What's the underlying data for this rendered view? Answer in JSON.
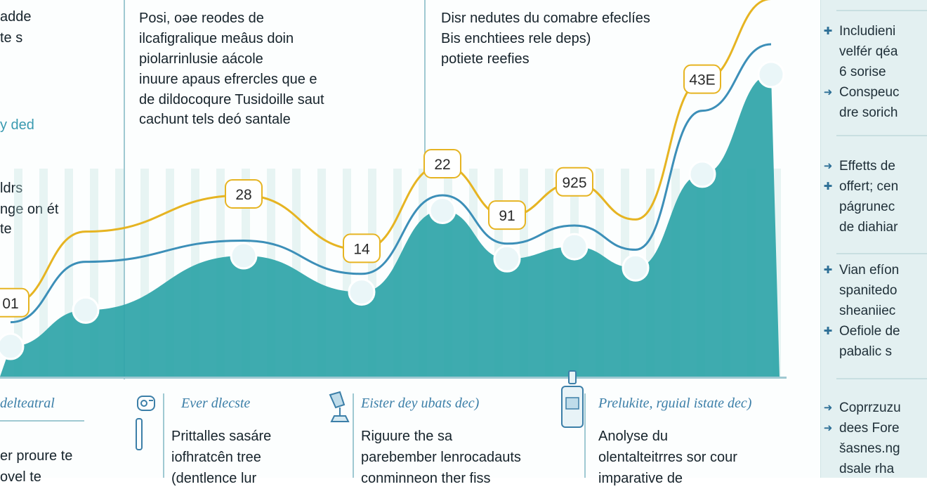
{
  "chart_data": {
    "type": "area",
    "title": "",
    "xlabel": "",
    "ylabel": "",
    "ylim": [
      0,
      100
    ],
    "grid": false,
    "legend": "none",
    "series": [
      {
        "values": [
          10,
          22,
          40,
          28,
          55,
          39,
          43,
          36,
          67,
          100
        ]
      },
      {
        "values": [
          18,
          38,
          45,
          34,
          60,
          44,
          50,
          42,
          88,
          110
        ]
      },
      {
        "values": [
          24,
          48,
          60,
          42,
          70,
          53,
          64,
          52,
          98,
          125
        ]
      }
    ],
    "point_labels": [
      "01",
      "",
      "28",
      "14",
      "22",
      "91",
      "925",
      "",
      "43E",
      ""
    ],
    "colors": {
      "area": "#2ea4a8",
      "line_blue": "#3c8fb8",
      "line_gold": "#e6b422",
      "bar_light": "#bfe3e0"
    }
  },
  "notes": {
    "left": [
      "adde",
      "te s",
      "",
      "",
      "y ded",
      "",
      "ldrs",
      "nge on ét",
      "te"
    ],
    "center": [
      "Posi, oǝe reodes de",
      "ilcafigralique meâus doin",
      "piolarrinlusie aácole",
      "inuure apaus efrercles que e",
      "de dildocoqure Tusidoille saut",
      "cachunt tels deó santale"
    ],
    "right": [
      "Disr nedutes du comabre efeclíes",
      "Bis enchtiees rele deps)",
      "potiete reefies"
    ]
  },
  "bottom": [
    {
      "head": "delteatral",
      "lines": [
        "er proure te",
        "ovel te"
      ]
    },
    {
      "head": "Ever dlecste",
      "lines": [
        "Prittalles sasáre",
        "iofhratcên tree",
        "(dentlence lur"
      ]
    },
    {
      "head": "Eister dey ubats dec)",
      "lines": [
        "Riguure the sa",
        "parebember lenrocadauts",
        "conminneon ther fiss"
      ]
    },
    {
      "head": "Prelukite, rguial istate dec)",
      "lines": [
        "Anolyse du",
        "olentalteitrres sor cour",
        "imparative de"
      ]
    }
  ],
  "sidebar": {
    "groups": [
      {
        "items": [
          {
            "bullet": "✚",
            "text": "Includieni"
          },
          {
            "bullet": "",
            "text": "velfér qéa"
          },
          {
            "bullet": "",
            "text": "6 sorise"
          },
          {
            "bullet": "➜",
            "text": "Conspeuc"
          },
          {
            "bullet": "",
            "text": "dre sorich"
          }
        ]
      },
      {
        "items": [
          {
            "bullet": "➜",
            "text": "Effetts de"
          },
          {
            "bullet": "✚",
            "text": "offert; cen"
          },
          {
            "bullet": "",
            "text": "págrunec"
          },
          {
            "bullet": "",
            "text": "de diahiar"
          }
        ]
      },
      {
        "items": [
          {
            "bullet": "✚",
            "text": "Vian efíon"
          },
          {
            "bullet": "",
            "text": "spanitedo"
          },
          {
            "bullet": "",
            "text": "sheaniiec"
          },
          {
            "bullet": "✚",
            "text": "Oefiole de"
          },
          {
            "bullet": "",
            "text": "pabalic s"
          }
        ]
      },
      {
        "items": [
          {
            "bullet": "➜",
            "text": "Coprrzuzu"
          },
          {
            "bullet": "➜",
            "text": "dees Fore"
          },
          {
            "bullet": "",
            "text": "šasnes.ng"
          },
          {
            "bullet": "",
            "text": "dsale rha"
          }
        ]
      }
    ]
  }
}
